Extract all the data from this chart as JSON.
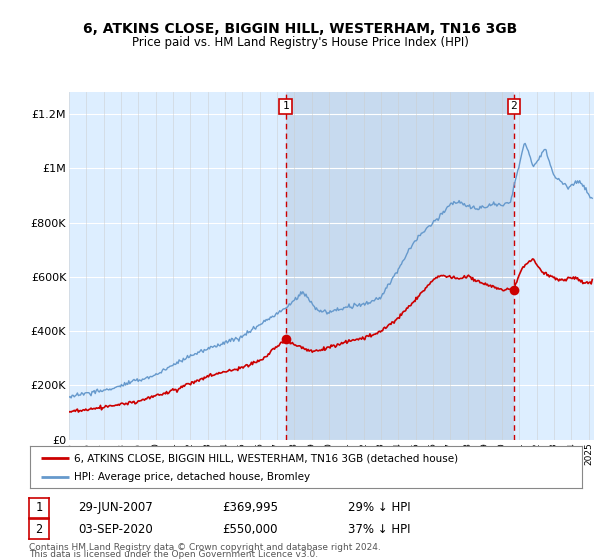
{
  "title": "6, ATKINS CLOSE, BIGGIN HILL, WESTERHAM, TN16 3GB",
  "subtitle": "Price paid vs. HM Land Registry's House Price Index (HPI)",
  "ylim": [
    0,
    1280000
  ],
  "yticks": [
    0,
    200000,
    400000,
    600000,
    800000,
    1000000,
    1200000
  ],
  "ytick_labels": [
    "£0",
    "£200K",
    "£400K",
    "£600K",
    "£800K",
    "£1M",
    "£1.2M"
  ],
  "bg_color": "#ddeeff",
  "bg_shade_color": "#c8ddf0",
  "hpi_color": "#6699cc",
  "price_color": "#cc0000",
  "sale1_x": 2007.5,
  "sale1_price": 369995,
  "sale1_label": "29-JUN-2007",
  "sale1_value": "£369,995",
  "sale1_hpi": "29% ↓ HPI",
  "sale2_x": 2020.67,
  "sale2_price": 550000,
  "sale2_label": "03-SEP-2020",
  "sale2_value": "£550,000",
  "sale2_hpi": "37% ↓ HPI",
  "legend_line1": "6, ATKINS CLOSE, BIGGIN HILL, WESTERHAM, TN16 3GB (detached house)",
  "legend_line2": "HPI: Average price, detached house, Bromley",
  "footer1": "Contains HM Land Registry data © Crown copyright and database right 2024.",
  "footer2": "This data is licensed under the Open Government Licence v3.0.",
  "xmin": 1995,
  "xmax": 2025.3
}
